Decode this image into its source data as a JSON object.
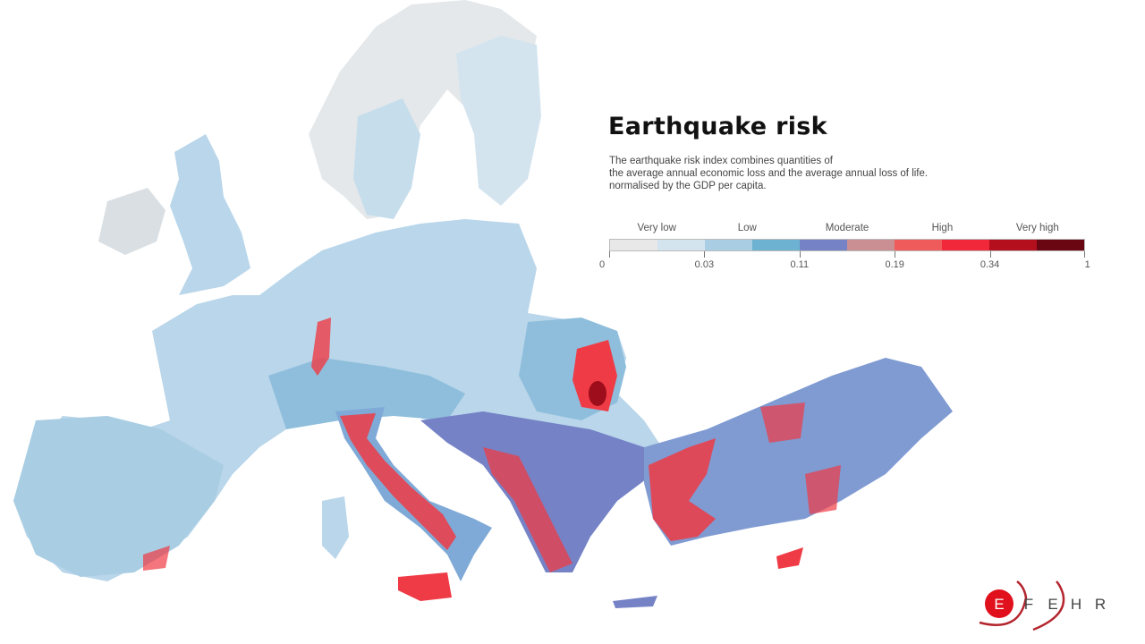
{
  "title": "Earthquake risk",
  "description": [
    "The earthquake risk index combines quantities of",
    "the average annual economic loss and the average annual loss of life.",
    "normalised by the GDP per capita."
  ],
  "legend": {
    "levels": [
      "Very low",
      "Low",
      "Moderate",
      "High",
      "Very high"
    ],
    "ticks": [
      "0",
      "0.03",
      "0.11",
      "0.19",
      "0.34",
      "1"
    ],
    "colors": [
      "#e8e8e8",
      "#d3e4ef",
      "#a9cde3",
      "#6db2d0",
      "#7583c6",
      "#c98f92",
      "#ef5a5a",
      "#f0283a",
      "#b40f1c",
      "#6a0612"
    ]
  },
  "map_colors": {
    "land_low": "#b9d6ea",
    "land_mid": "#8ebedc",
    "land_north": "#e4e8ea",
    "moderate": "#7583c6",
    "high": "#ef3b45",
    "very_high": "#9e0d1b"
  },
  "logo": {
    "letters": [
      "E",
      "F",
      "E",
      "H",
      "R"
    ]
  }
}
